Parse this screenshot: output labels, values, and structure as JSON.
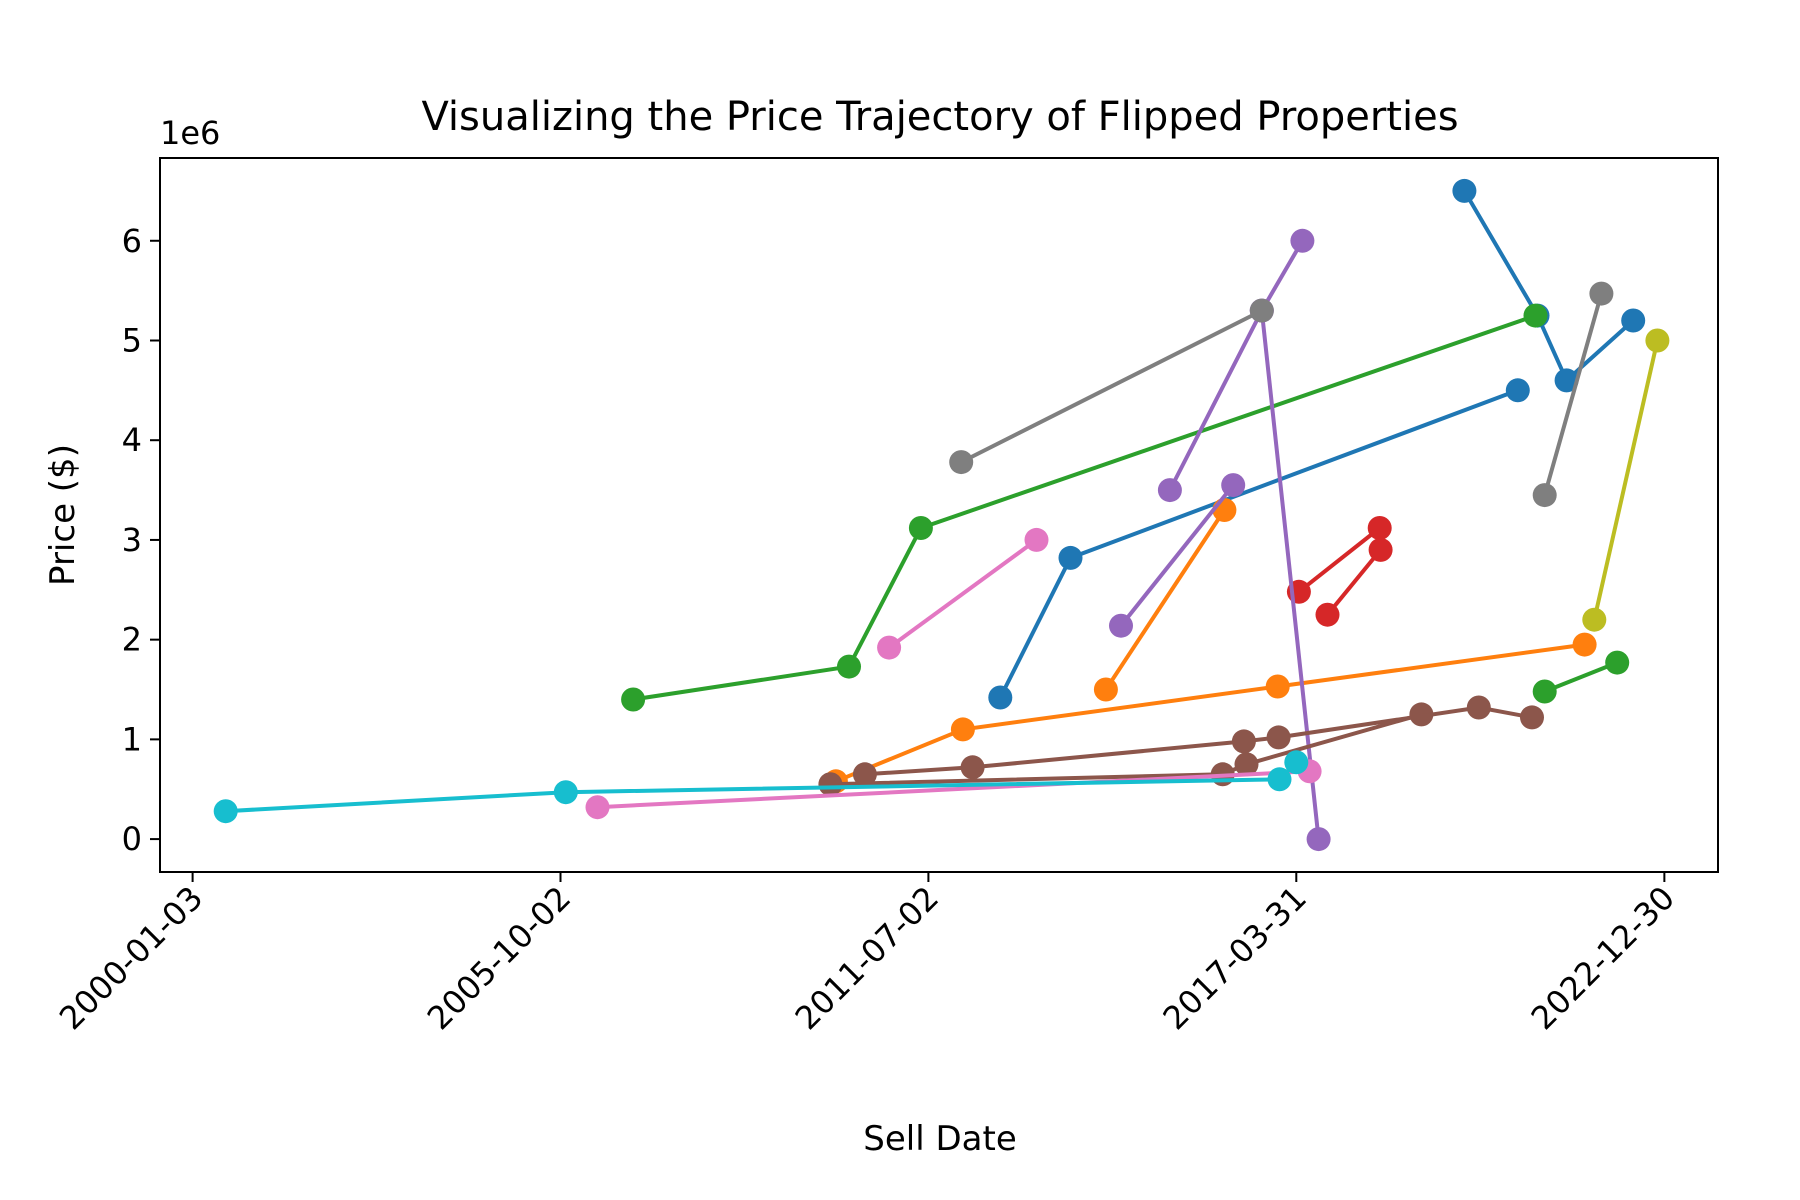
{
  "chart_data": {
    "type": "line",
    "title": "Visualizing the Price Trajectory of Flipped Properties",
    "xlabel": "Sell Date",
    "ylabel": "Price ($)",
    "y_offset_label": "1e6",
    "x_ticks": [
      "2000-01-03",
      "2005-10-02",
      "2011-07-02",
      "2017-03-31",
      "2022-12-30"
    ],
    "y_ticks": [
      0,
      1,
      2,
      3,
      4,
      5,
      6
    ],
    "xlim": [
      "1999-07-01",
      "2023-11-01"
    ],
    "ylim": [
      -0.33,
      6.83
    ],
    "grid": false,
    "legend": "none",
    "series": [
      {
        "color": "#1f77b4",
        "points": [
          [
            "2019-11-15",
            6.5
          ],
          [
            "2021-01-05",
            5.25
          ],
          [
            "2021-06-20",
            4.6
          ],
          [
            "2022-07-05",
            5.2
          ]
        ]
      },
      {
        "color": "#1f77b4",
        "points": [
          [
            "2012-08-15",
            1.42
          ],
          [
            "2013-09-20",
            2.82
          ],
          [
            "2020-09-15",
            4.5
          ]
        ]
      },
      {
        "color": "#ff7f0e",
        "points": [
          [
            "2014-04-10",
            1.5
          ],
          [
            "2016-02-15",
            3.3
          ]
        ]
      },
      {
        "color": "#ff7f0e",
        "points": [
          [
            "2010-01-20",
            0.58
          ],
          [
            "2012-01-15",
            1.1
          ],
          [
            "2016-12-15",
            1.53
          ],
          [
            "2021-10-01",
            1.95
          ]
        ]
      },
      {
        "color": "#2ca02c",
        "points": [
          [
            "2006-11-20",
            1.4
          ],
          [
            "2010-04-05",
            1.73
          ],
          [
            "2011-05-20",
            3.12
          ],
          [
            "2020-12-25",
            5.25
          ]
        ]
      },
      {
        "color": "#2ca02c",
        "points": [
          [
            "2021-02-15",
            1.48
          ],
          [
            "2022-04-05",
            1.77
          ]
        ]
      },
      {
        "color": "#d62728",
        "points": [
          [
            "2017-04-15",
            2.48
          ],
          [
            "2018-07-20",
            3.12
          ]
        ]
      },
      {
        "color": "#d62728",
        "points": [
          [
            "2017-09-25",
            2.25
          ],
          [
            "2018-07-25",
            2.9
          ]
        ]
      },
      {
        "color": "#9467bd",
        "points": [
          [
            "2015-04-10",
            3.5
          ],
          [
            "2016-09-15",
            5.3
          ],
          [
            "2017-08-05",
            0.0
          ]
        ]
      },
      {
        "color": "#9467bd",
        "points": [
          [
            "2014-07-05",
            2.14
          ],
          [
            "2016-04-05",
            3.55
          ]
        ]
      },
      {
        "color": "#9467bd",
        "points": [
          [
            "2016-09-15",
            5.3
          ],
          [
            "2017-05-05",
            6.0
          ]
        ]
      },
      {
        "color": "#8c564b",
        "points": [
          [
            "2009-12-20",
            0.55
          ],
          [
            "2016-02-05",
            0.65
          ],
          [
            "2016-06-20",
            0.75
          ],
          [
            "2019-03-15",
            1.25
          ]
        ]
      },
      {
        "color": "#8c564b",
        "points": [
          [
            "2010-07-05",
            0.65
          ],
          [
            "2012-03-10",
            0.72
          ],
          [
            "2016-06-05",
            0.98
          ],
          [
            "2016-12-20",
            1.02
          ],
          [
            "2020-02-05",
            1.32
          ],
          [
            "2020-12-05",
            1.22
          ]
        ]
      },
      {
        "color": "#e377c2",
        "points": [
          [
            "2010-11-20",
            1.92
          ],
          [
            "2013-03-10",
            3.0
          ]
        ]
      },
      {
        "color": "#e377c2",
        "points": [
          [
            "2006-05-01",
            0.32
          ],
          [
            "2017-06-15",
            0.68
          ]
        ]
      },
      {
        "color": "#7f7f7f",
        "points": [
          [
            "2012-01-05",
            3.78
          ],
          [
            "2016-09-15",
            5.3
          ]
        ]
      },
      {
        "color": "#7f7f7f",
        "points": [
          [
            "2021-02-15",
            3.45
          ],
          [
            "2022-01-05",
            5.47
          ]
        ]
      },
      {
        "color": "#bcbd22",
        "points": [
          [
            "2021-11-25",
            2.2
          ],
          [
            "2022-11-20",
            5.0
          ]
        ]
      },
      {
        "color": "#17becf",
        "points": [
          [
            "2000-07-10",
            0.28
          ],
          [
            "2005-11-01",
            0.47
          ],
          [
            "2016-12-25",
            0.6
          ],
          [
            "2017-03-31",
            0.77
          ]
        ]
      }
    ]
  }
}
